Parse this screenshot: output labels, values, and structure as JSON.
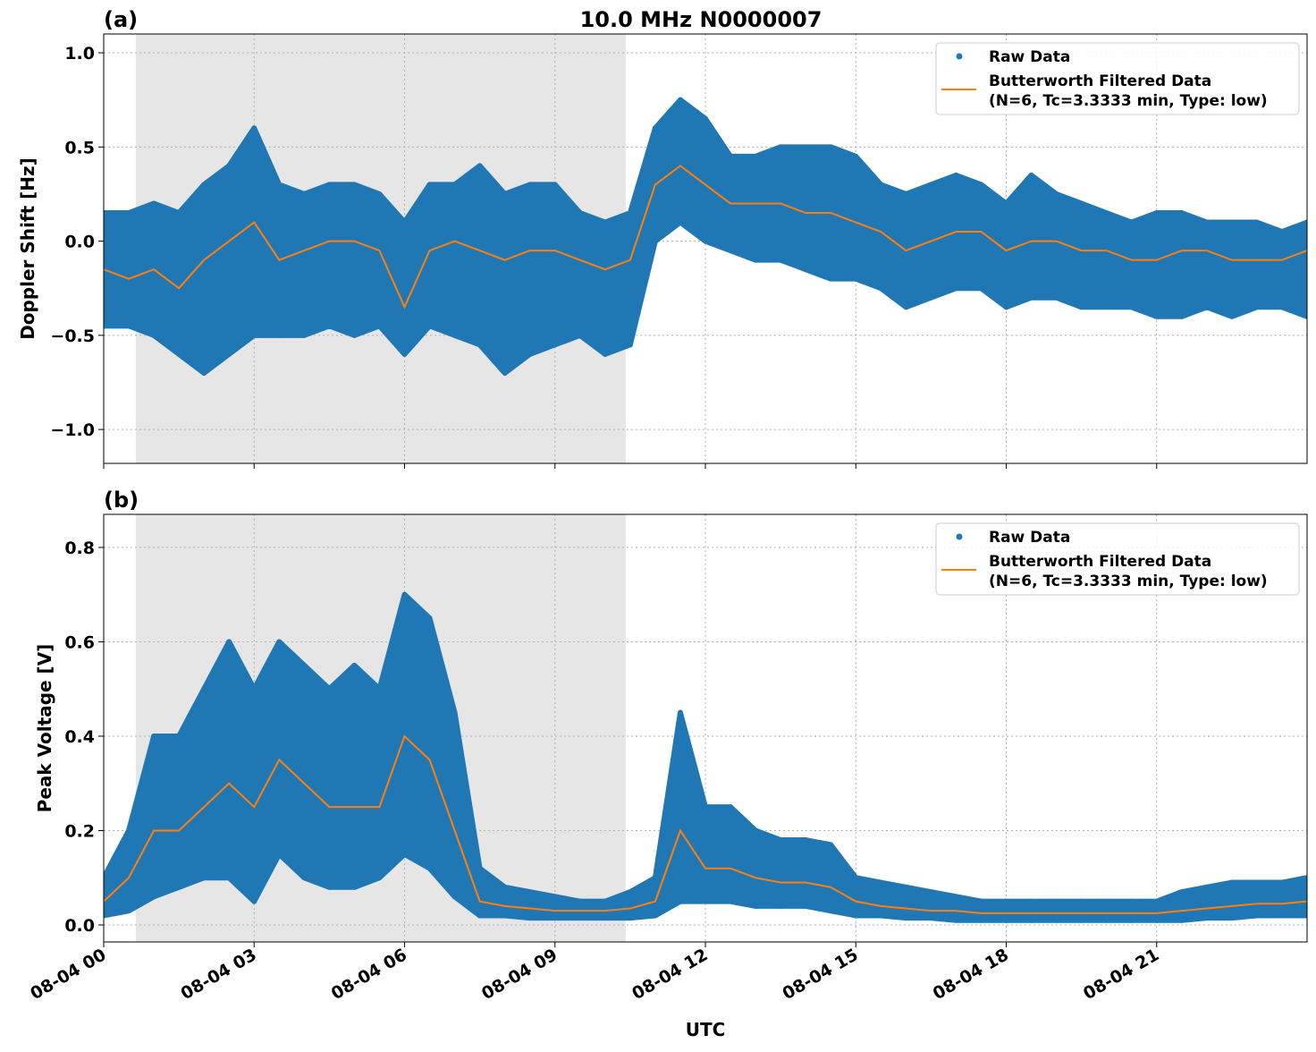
{
  "title": "10.0 MHz N0000007",
  "xlabel": "UTC",
  "colors": {
    "raw": "#1f77b4",
    "filtered": "#ff7f0e",
    "night_shade": "#e6e6e6"
  },
  "chart_data": [
    {
      "type": "scatter",
      "panel_label": "(a)",
      "ylabel": "Doppler Shift [Hz]",
      "xlim_hours": [
        0,
        24
      ],
      "ylim": [
        -1.18,
        1.1
      ],
      "yticks": [
        1.0,
        0.5,
        0.0,
        -0.5,
        -1.0
      ],
      "ytick_labels": [
        "1.0",
        "0.5",
        "0.0",
        "−0.5",
        "−1.0"
      ],
      "xtick_hours": [
        0,
        3,
        6,
        9,
        12,
        15,
        18,
        21
      ],
      "xtick_labels": [
        "08-04 00",
        "08-04 03",
        "08-04 06",
        "08-04 09",
        "08-04 12",
        "08-04 15",
        "08-04 18",
        "08-04 21"
      ],
      "grid": true,
      "legend_position": "top-right",
      "legend": [
        "Raw Data",
        "Butterworth Filtered Data",
        "(N=6, Tc=3.3333 min, Type: low)"
      ],
      "shaded_interval_hours": [
        0.64,
        10.41
      ],
      "x_hours": [
        0,
        0.5,
        1,
        1.5,
        2,
        2.5,
        3,
        3.5,
        4,
        4.5,
        5,
        5.5,
        6,
        6.5,
        7,
        7.5,
        8,
        8.5,
        9,
        9.5,
        10,
        10.5,
        11,
        11.5,
        12,
        12.5,
        13,
        13.5,
        14,
        14.5,
        15,
        15.5,
        16,
        16.5,
        17,
        17.5,
        18,
        18.5,
        19,
        19.5,
        20,
        20.5,
        21,
        21.5,
        22,
        22.5,
        23,
        23.5,
        24
      ],
      "series": [
        {
          "name": "Butterworth Filtered Data",
          "values": [
            -0.15,
            -0.2,
            -0.15,
            -0.25,
            -0.1,
            0.0,
            0.1,
            -0.1,
            -0.05,
            0.0,
            0.0,
            -0.05,
            -0.35,
            -0.05,
            0.0,
            -0.05,
            -0.1,
            -0.05,
            -0.05,
            -0.1,
            -0.15,
            -0.1,
            0.3,
            0.4,
            0.3,
            0.2,
            0.2,
            0.2,
            0.15,
            0.15,
            0.1,
            0.05,
            -0.05,
            0.0,
            0.05,
            0.05,
            -0.05,
            0.0,
            0.0,
            -0.05,
            -0.05,
            -0.1,
            -0.1,
            -0.05,
            -0.05,
            -0.1,
            -0.1,
            -0.1,
            -0.05
          ]
        },
        {
          "name": "Raw Data",
          "min": [
            -0.45,
            -0.45,
            -0.5,
            -0.6,
            -0.7,
            -0.6,
            -0.5,
            -0.5,
            -0.5,
            -0.45,
            -0.5,
            -0.45,
            -0.6,
            -0.45,
            -0.5,
            -0.55,
            -0.7,
            -0.6,
            -0.55,
            -0.5,
            -0.6,
            -0.55,
            0.0,
            0.1,
            0.0,
            -0.05,
            -0.1,
            -0.1,
            -0.15,
            -0.2,
            -0.2,
            -0.25,
            -0.35,
            -0.3,
            -0.25,
            -0.25,
            -0.35,
            -0.3,
            -0.3,
            -0.35,
            -0.35,
            -0.35,
            -0.4,
            -0.4,
            -0.35,
            -0.4,
            -0.35,
            -0.35,
            -0.4
          ],
          "max": [
            0.15,
            0.15,
            0.2,
            0.15,
            0.3,
            0.4,
            0.6,
            0.3,
            0.25,
            0.3,
            0.3,
            0.25,
            0.1,
            0.3,
            0.3,
            0.4,
            0.25,
            0.3,
            0.3,
            0.15,
            0.1,
            0.15,
            0.6,
            0.75,
            0.65,
            0.45,
            0.45,
            0.5,
            0.5,
            0.5,
            0.45,
            0.3,
            0.25,
            0.3,
            0.35,
            0.3,
            0.2,
            0.35,
            0.25,
            0.2,
            0.15,
            0.1,
            0.15,
            0.15,
            0.1,
            0.1,
            0.1,
            0.05,
            0.1
          ]
        }
      ]
    },
    {
      "type": "scatter",
      "panel_label": "(b)",
      "ylabel": "Peak Voltage [V]",
      "xlim_hours": [
        0,
        24
      ],
      "ylim": [
        -0.036,
        0.87
      ],
      "yticks": [
        0.0,
        0.2,
        0.4,
        0.6,
        0.8
      ],
      "ytick_labels": [
        "0.0",
        "0.2",
        "0.4",
        "0.6",
        "0.8"
      ],
      "xtick_hours": [
        0,
        3,
        6,
        9,
        12,
        15,
        18,
        21
      ],
      "xtick_labels": [
        "08-04 00",
        "08-04 03",
        "08-04 06",
        "08-04 09",
        "08-04 12",
        "08-04 15",
        "08-04 18",
        "08-04 21"
      ],
      "grid": true,
      "legend_position": "top-right",
      "legend": [
        "Raw Data",
        "Butterworth Filtered Data",
        "(N=6, Tc=3.3333 min, Type: low)"
      ],
      "shaded_interval_hours": [
        0.64,
        10.41
      ],
      "x_hours": [
        0,
        0.5,
        1,
        1.5,
        2,
        2.5,
        3,
        3.5,
        4,
        4.5,
        5,
        5.5,
        6,
        6.5,
        7,
        7.5,
        8,
        8.5,
        9,
        9.5,
        10,
        10.5,
        11,
        11.5,
        12,
        12.5,
        13,
        13.5,
        14,
        14.5,
        15,
        15.5,
        16,
        16.5,
        17,
        17.5,
        18,
        18.5,
        19,
        19.5,
        20,
        20.5,
        21,
        21.5,
        22,
        22.5,
        23,
        23.5,
        24
      ],
      "series": [
        {
          "name": "Butterworth Filtered Data",
          "values": [
            0.05,
            0.1,
            0.2,
            0.2,
            0.25,
            0.3,
            0.25,
            0.35,
            0.3,
            0.25,
            0.25,
            0.25,
            0.4,
            0.35,
            0.2,
            0.05,
            0.04,
            0.035,
            0.03,
            0.03,
            0.03,
            0.035,
            0.05,
            0.2,
            0.12,
            0.12,
            0.1,
            0.09,
            0.09,
            0.08,
            0.05,
            0.04,
            0.035,
            0.03,
            0.03,
            0.025,
            0.025,
            0.025,
            0.025,
            0.025,
            0.025,
            0.025,
            0.025,
            0.03,
            0.035,
            0.04,
            0.045,
            0.045,
            0.05
          ]
        },
        {
          "name": "Raw Data",
          "min": [
            0.02,
            0.03,
            0.06,
            0.08,
            0.1,
            0.1,
            0.05,
            0.15,
            0.1,
            0.08,
            0.08,
            0.1,
            0.15,
            0.12,
            0.06,
            0.02,
            0.02,
            0.015,
            0.015,
            0.015,
            0.015,
            0.015,
            0.02,
            0.05,
            0.05,
            0.05,
            0.04,
            0.04,
            0.04,
            0.03,
            0.02,
            0.02,
            0.015,
            0.015,
            0.01,
            0.01,
            0.01,
            0.01,
            0.01,
            0.01,
            0.01,
            0.01,
            0.01,
            0.01,
            0.015,
            0.015,
            0.02,
            0.02,
            0.02
          ],
          "max": [
            0.1,
            0.2,
            0.4,
            0.4,
            0.5,
            0.6,
            0.5,
            0.6,
            0.55,
            0.5,
            0.55,
            0.5,
            0.7,
            0.65,
            0.45,
            0.12,
            0.08,
            0.07,
            0.06,
            0.05,
            0.05,
            0.07,
            0.1,
            0.45,
            0.25,
            0.25,
            0.2,
            0.18,
            0.18,
            0.17,
            0.1,
            0.09,
            0.08,
            0.07,
            0.06,
            0.05,
            0.05,
            0.05,
            0.05,
            0.05,
            0.05,
            0.05,
            0.05,
            0.07,
            0.08,
            0.09,
            0.09,
            0.09,
            0.1
          ]
        }
      ]
    }
  ]
}
